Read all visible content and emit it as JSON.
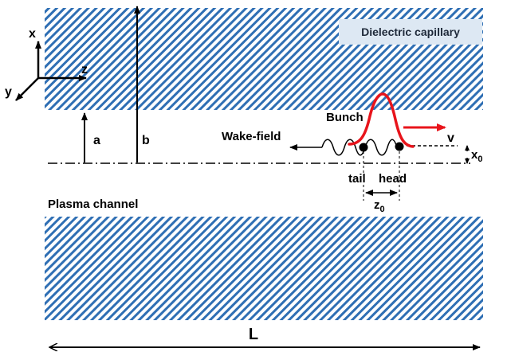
{
  "labels": {
    "dielectric": "Dielectric capillary",
    "bunch": "Bunch",
    "wake_field": "Wake-field",
    "velocity": "v",
    "a": "a",
    "b": "b",
    "x_axis": "x",
    "y_axis": "y",
    "z_axis": "z",
    "x0_main": "x",
    "x0_sub": "0",
    "tail": "tail",
    "head": "head",
    "z0_main": "z",
    "z0_sub": "0",
    "plasma": "Plasma channel",
    "length": "L"
  },
  "colors": {
    "hatch": "#2f6fb4",
    "bunch": "#e8141b",
    "box_bg": "#dde8f3",
    "ink": "#000000"
  },
  "icons": {
    "particle_marker": "filled-dot"
  }
}
